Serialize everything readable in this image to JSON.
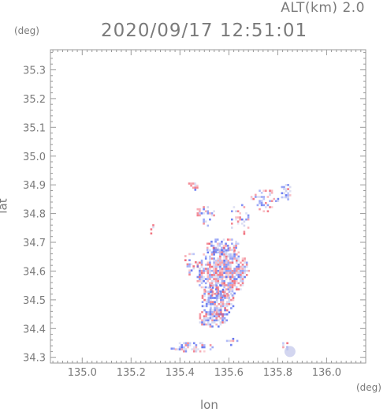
{
  "header": {
    "altitude_label": "ALT(km)  2.0",
    "timestamp": "2020/09/17 12:51:01"
  },
  "axes": {
    "ylabel": "lat",
    "xlabel": "lon",
    "y_unit": "(deg)",
    "x_unit": "(deg)"
  },
  "chart_data": {
    "type": "heatmap",
    "xlabel": "lon",
    "ylabel": "lat",
    "xlim": [
      134.87,
      136.16
    ],
    "ylim": [
      34.28,
      35.37
    ],
    "x_ticks": [
      135.0,
      135.2,
      135.4,
      135.6,
      135.8,
      136.0
    ],
    "x_tick_labels": [
      "135.0",
      "135.2",
      "135.4",
      "135.6",
      "135.8",
      "136.0"
    ],
    "y_ticks": [
      34.3,
      34.4,
      34.5,
      34.6,
      34.7,
      34.8,
      34.9,
      35.0,
      35.1,
      35.2,
      35.3
    ],
    "y_tick_labels": [
      "34.3",
      "34.4",
      "34.5",
      "34.6",
      "34.7",
      "34.8",
      "34.9",
      "35.0",
      "35.1",
      "35.2",
      "35.3"
    ],
    "colors": {
      "positive": "#ee5a6a",
      "negative": "#5a6ef0",
      "neutral": "#c8ccec"
    }
  }
}
